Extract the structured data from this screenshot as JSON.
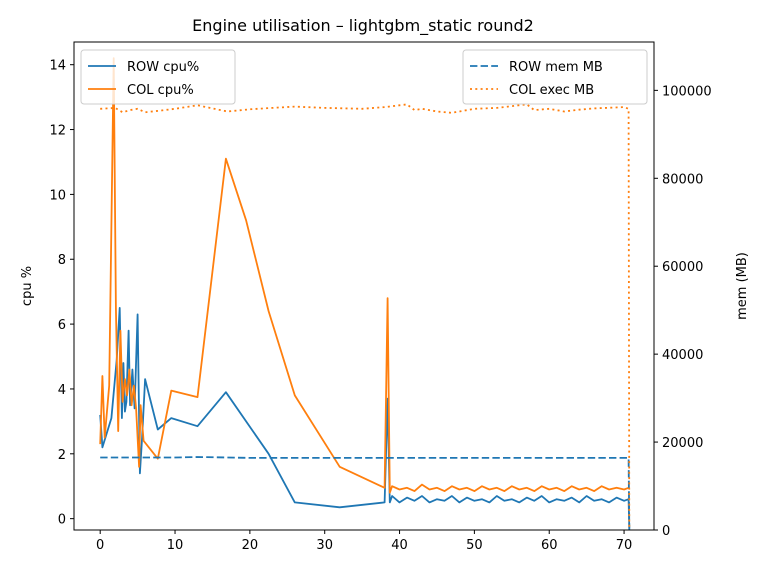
{
  "chart_data": {
    "type": "line",
    "title": "Engine utilisation – lightgbm_static round2",
    "xlabel": "",
    "ylabel": "cpu %",
    "y2label": "mem (MB)",
    "xlim": [
      -3.5,
      74
    ],
    "ylim": [
      -0.35,
      14.7
    ],
    "y2lim": [
      0,
      111000
    ],
    "xticks": [
      0,
      10,
      20,
      30,
      40,
      50,
      60,
      70
    ],
    "yticks": [
      0,
      2,
      4,
      6,
      8,
      10,
      12,
      14
    ],
    "y2ticks": [
      0,
      20000,
      40000,
      60000,
      80000,
      100000
    ],
    "legend_left": "upper-left",
    "legend_right": "upper-right",
    "series": [
      {
        "name": "ROW cpu%",
        "axis": "left",
        "color": "#1f77b4",
        "style": "solid",
        "x": [
          0,
          0.3,
          1.5,
          2.2,
          2.6,
          2.9,
          3.1,
          3.3,
          3.5,
          3.8,
          4.0,
          4.3,
          4.6,
          5.0,
          5.3,
          5.6,
          6.0,
          7.7,
          9.5,
          13.0,
          16.8,
          22.5,
          26.0,
          32.0,
          38.0,
          38.4,
          38.7,
          39.0,
          40.0,
          41.0,
          42.0,
          43.0,
          44.0,
          45.0,
          46.0,
          47.0,
          48.0,
          49.0,
          50.0,
          51.0,
          52.0,
          53.0,
          54.0,
          55.0,
          56.0,
          57.0,
          58.0,
          59.0,
          60.0,
          61.0,
          62.0,
          63.0,
          64.0,
          65.0,
          66.0,
          67.0,
          68.0,
          69.0,
          70.0,
          70.6,
          70.7
        ],
        "y": [
          3.2,
          2.2,
          3.1,
          4.9,
          6.5,
          3.1,
          4.8,
          3.3,
          3.6,
          5.8,
          3.5,
          4.6,
          3.4,
          6.3,
          1.4,
          2.5,
          4.3,
          2.75,
          3.1,
          2.85,
          3.9,
          2.0,
          0.5,
          0.35,
          0.5,
          3.7,
          0.5,
          0.7,
          0.5,
          0.65,
          0.55,
          0.7,
          0.5,
          0.6,
          0.55,
          0.7,
          0.5,
          0.65,
          0.55,
          0.6,
          0.5,
          0.7,
          0.55,
          0.6,
          0.5,
          0.65,
          0.55,
          0.7,
          0.5,
          0.6,
          0.55,
          0.65,
          0.5,
          0.7,
          0.55,
          0.6,
          0.5,
          0.65,
          0.55,
          0.6,
          -0.3
        ]
      },
      {
        "name": "COL cpu%",
        "axis": "left",
        "color": "#ff7f0e",
        "style": "solid",
        "x": [
          0,
          0.3,
          0.6,
          1.2,
          1.8,
          2.1,
          2.4,
          2.7,
          3.0,
          3.3,
          3.6,
          3.9,
          4.2,
          4.5,
          4.8,
          5.2,
          5.4,
          5.8,
          7.7,
          9.5,
          13.0,
          16.8,
          19.5,
          22.5,
          26.0,
          32.0,
          38.0,
          38.4,
          38.7,
          39.0,
          40.0,
          41.0,
          42.0,
          43.0,
          44.0,
          45.0,
          46.0,
          47.0,
          48.0,
          49.0,
          50.0,
          51.0,
          52.0,
          53.0,
          54.0,
          55.0,
          56.0,
          57.0,
          58.0,
          59.0,
          60.0,
          61.0,
          62.0,
          63.0,
          64.0,
          65.0,
          66.0,
          67.0,
          68.0,
          69.0,
          70.0,
          70.6
        ],
        "y": [
          2.3,
          4.4,
          2.5,
          4.1,
          14.2,
          6.5,
          2.7,
          5.8,
          3.6,
          4.3,
          3.8,
          4.6,
          3.5,
          4.1,
          3.4,
          1.6,
          3.5,
          2.4,
          1.85,
          3.95,
          3.75,
          11.1,
          9.2,
          6.4,
          3.8,
          1.6,
          0.95,
          6.8,
          0.8,
          1.0,
          0.9,
          0.95,
          0.85,
          1.05,
          0.9,
          0.95,
          0.85,
          1.0,
          0.9,
          0.95,
          0.85,
          1.0,
          0.9,
          0.95,
          0.85,
          1.0,
          0.9,
          0.95,
          0.85,
          1.0,
          0.9,
          0.95,
          0.85,
          1.0,
          0.9,
          0.95,
          0.85,
          1.0,
          0.9,
          0.95,
          0.9,
          0.95
        ]
      },
      {
        "name": "ROW mem MB",
        "axis": "right",
        "color": "#1f77b4",
        "style": "dashed",
        "x": [
          0,
          10,
          13,
          20,
          30,
          40,
          50,
          60,
          70,
          70.6,
          70.7
        ],
        "y": [
          16500,
          16500,
          16600,
          16400,
          16400,
          16400,
          16400,
          16400,
          16400,
          16400,
          0
        ]
      },
      {
        "name": "COL exec MB",
        "axis": "right",
        "color": "#ff7f0e",
        "style": "dotted",
        "x": [
          0,
          2,
          3,
          4,
          5,
          6,
          8,
          10,
          13,
          17,
          20,
          23,
          26,
          30,
          35,
          38,
          41,
          42,
          43,
          45,
          47,
          50,
          53,
          57,
          58,
          60,
          62,
          64,
          66,
          70,
          70.6,
          70.7
        ],
        "y": [
          95800,
          96000,
          95000,
          95500,
          95800,
          95000,
          95400,
          95800,
          96600,
          95200,
          95700,
          96000,
          96300,
          96000,
          95800,
          96200,
          96800,
          95500,
          95800,
          95200,
          94900,
          95800,
          96000,
          96800,
          95500,
          95800,
          95200,
          95600,
          95900,
          96200,
          95800,
          0
        ]
      }
    ]
  }
}
